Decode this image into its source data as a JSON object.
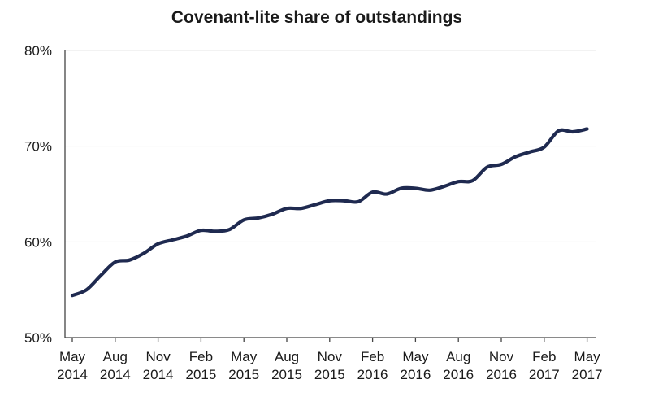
{
  "chart_data": {
    "type": "line",
    "title": "Covenant-lite share of outstandings",
    "xlabel": "",
    "ylabel": "",
    "ylim": [
      50,
      80
    ],
    "y_ticks": [
      "50%",
      "60%",
      "70%",
      "80%"
    ],
    "y_tick_values": [
      50,
      60,
      70,
      80
    ],
    "grid": true,
    "x_ticks": [
      {
        "month": "May",
        "year": "2014"
      },
      {
        "month": "Aug",
        "year": "2014"
      },
      {
        "month": "Nov",
        "year": "2014"
      },
      {
        "month": "Feb",
        "year": "2015"
      },
      {
        "month": "May",
        "year": "2015"
      },
      {
        "month": "Aug",
        "year": "2015"
      },
      {
        "month": "Nov",
        "year": "2015"
      },
      {
        "month": "Feb",
        "year": "2016"
      },
      {
        "month": "May",
        "year": "2016"
      },
      {
        "month": "Aug",
        "year": "2016"
      },
      {
        "month": "Nov",
        "year": "2016"
      },
      {
        "month": "Feb",
        "year": "2017"
      },
      {
        "month": "May",
        "year": "2017"
      }
    ],
    "line_color": "#1f2a50",
    "series": [
      {
        "x": [
          "2014-05",
          "2014-06",
          "2014-07",
          "2014-08",
          "2014-09",
          "2014-10",
          "2014-11",
          "2014-12",
          "2015-01",
          "2015-02",
          "2015-03",
          "2015-04",
          "2015-05",
          "2015-06",
          "2015-07",
          "2015-08",
          "2015-09",
          "2015-10",
          "2015-11",
          "2015-12",
          "2016-01",
          "2016-02",
          "2016-03",
          "2016-04",
          "2016-05",
          "2016-06",
          "2016-07",
          "2016-08",
          "2016-09",
          "2016-10",
          "2016-11",
          "2016-12",
          "2017-01",
          "2017-02",
          "2017-03",
          "2017-04",
          "2017-05"
        ],
        "values": [
          54.4,
          55.0,
          56.5,
          57.9,
          58.1,
          58.8,
          59.8,
          60.2,
          60.6,
          61.2,
          61.1,
          61.3,
          62.3,
          62.5,
          62.9,
          63.5,
          63.5,
          63.9,
          64.3,
          64.3,
          64.2,
          65.2,
          65.0,
          65.6,
          65.6,
          65.4,
          65.8,
          66.3,
          66.4,
          67.8,
          68.1,
          68.9,
          69.4,
          69.9,
          71.6,
          71.5,
          71.8
        ]
      }
    ]
  }
}
